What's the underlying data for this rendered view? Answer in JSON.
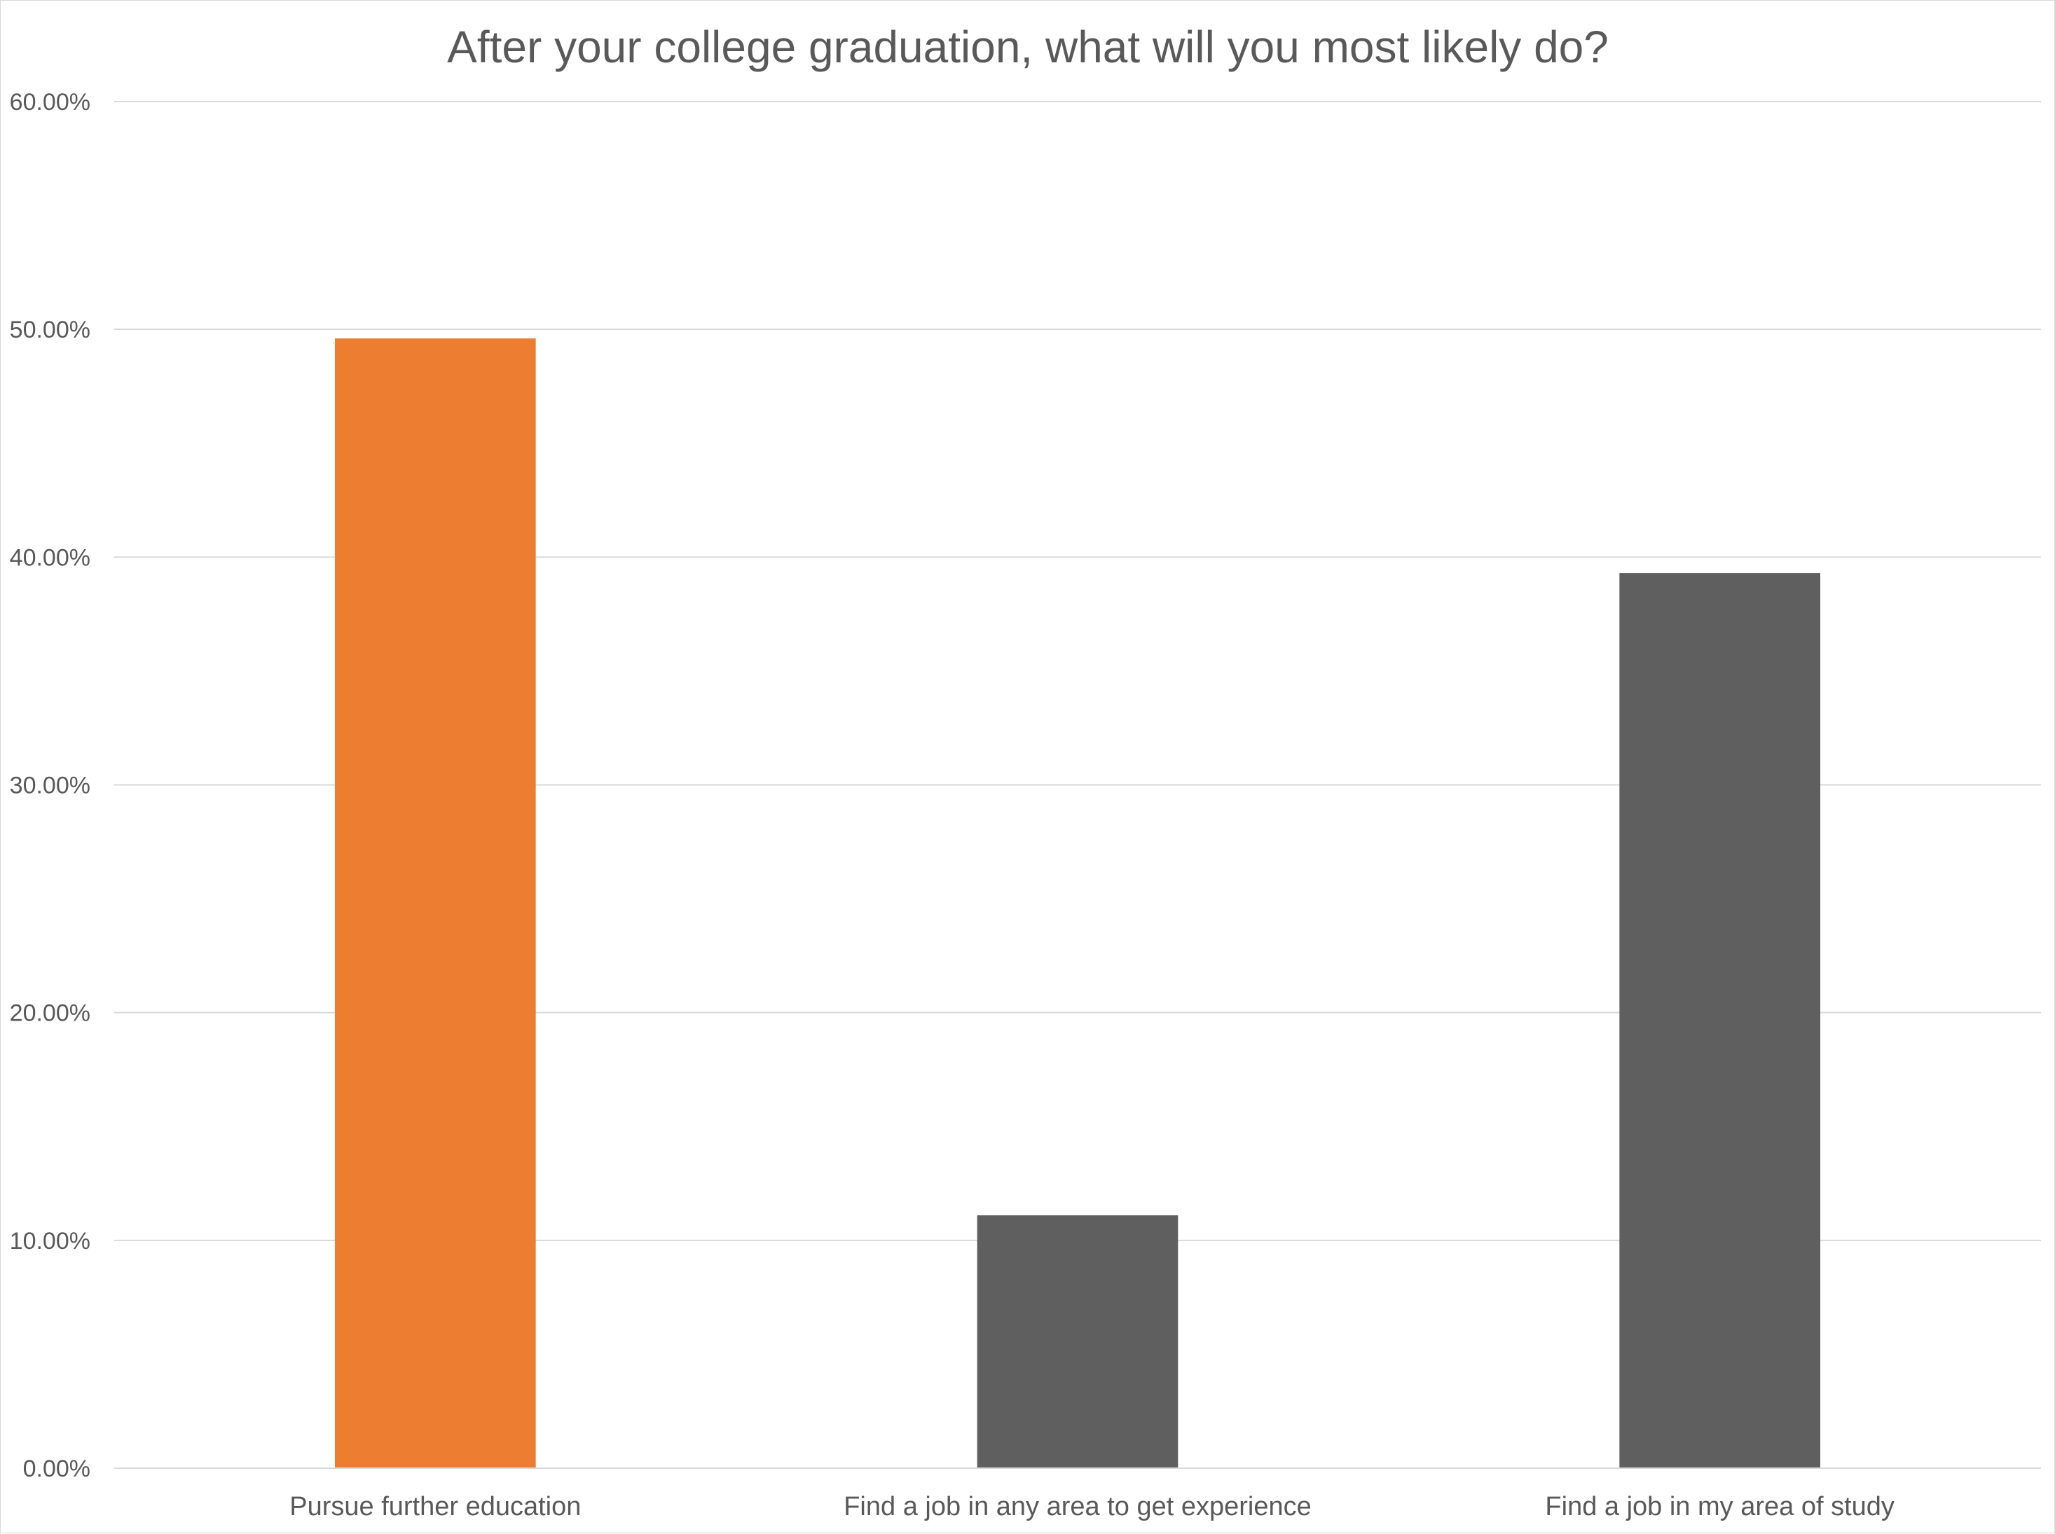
{
  "chart_data": {
    "type": "bar",
    "title": "After your college graduation, what will you most likely do?",
    "categories": [
      "Pursue further education",
      "Find a job in any area to get experience",
      "Find a job in my area of study"
    ],
    "values": [
      49.6,
      11.1,
      39.3
    ],
    "ylim": [
      0,
      60
    ],
    "yticks": [
      0,
      10,
      20,
      30,
      40,
      50,
      60
    ],
    "ytick_labels": [
      "0.00%",
      "10.00%",
      "20.00%",
      "30.00%",
      "40.00%",
      "50.00%",
      "60.00%"
    ],
    "xlabel": "",
    "ylabel": "",
    "grid": true,
    "legend": "none",
    "colors": {
      "highlight": "#ED7D31",
      "default": "#5F5F5F",
      "grid": "#D9D9D9",
      "text": "#595959"
    },
    "bar_colors": [
      "highlight",
      "default",
      "default"
    ]
  }
}
